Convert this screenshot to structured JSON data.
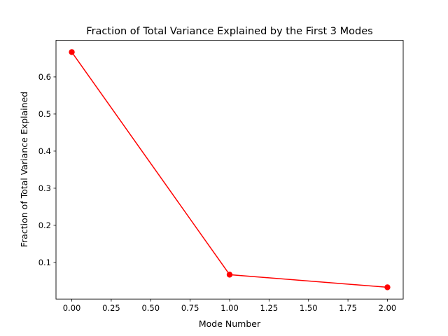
{
  "chart_data": {
    "type": "line",
    "title": "Fraction of Total Variance Explained by the First 3 Modes",
    "xlabel": "Mode Number",
    "ylabel": "Fraction of Total Variance Explained",
    "x": [
      0,
      1,
      2
    ],
    "series": [
      {
        "values": [
          0.667,
          0.067,
          0.033
        ],
        "color": "#ff0000",
        "marker": "circle"
      }
    ],
    "xlim": [
      -0.1,
      2.1
    ],
    "ylim": [
      0.0013,
      0.6987
    ],
    "xticks": [
      0.0,
      0.25,
      0.5,
      0.75,
      1.0,
      1.25,
      1.5,
      1.75,
      2.0
    ],
    "xtick_labels": [
      "0.00",
      "0.25",
      "0.50",
      "0.75",
      "1.00",
      "1.25",
      "1.50",
      "1.75",
      "2.00"
    ],
    "yticks": [
      0.1,
      0.2,
      0.3,
      0.4,
      0.5,
      0.6
    ],
    "ytick_labels": [
      "0.1",
      "0.2",
      "0.3",
      "0.4",
      "0.5",
      "0.6"
    ],
    "grid": false,
    "legend": false
  }
}
